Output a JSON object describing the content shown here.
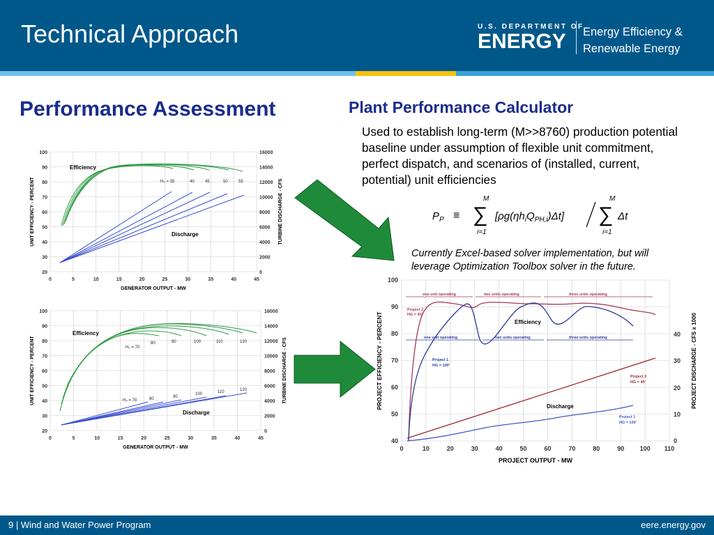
{
  "header": {
    "title": "Technical Approach",
    "doe_small": "U.S. DEPARTMENT OF",
    "doe_big": "ENERGY",
    "eere_line1": "Energy Efficiency &",
    "eere_line2": "Renewable Energy"
  },
  "left": {
    "heading": "Performance Assessment"
  },
  "right": {
    "heading": "Plant Performance Calculator",
    "description": "Used to establish long-term (M>>8760) production potential baseline under assumption of flexible unit commitment, perfect dispatch, and scenarios of (installed, current, potential) unit efficiencies",
    "note": "Currently Excel-based solver implementation, but will leverage Optimization Toolbox solver in the future."
  },
  "formula": {
    "lhs": "P",
    "lhs_sub": "P",
    "equiv": "≡",
    "upper_limit": "M",
    "lower_limit": "i=1",
    "numerator": "[ρg(ηh",
    "sub_i": "i",
    "q": "Q",
    "q_sub": "PH,i",
    "num_end": ")Δt]",
    "denominator": "Δt"
  },
  "chart1": {
    "y_label": "UNIT EFFICIENCY - PERCENT",
    "y2_label": "TURBINE DISCHARGE - CFS",
    "x_label": "GENERATOR OUTPUT - MW",
    "y_ticks": [
      "100",
      "90",
      "80",
      "70",
      "60",
      "50",
      "40",
      "30",
      "20"
    ],
    "y2_ticks": [
      "16000",
      "14000",
      "12000",
      "10000",
      "8000",
      "6000",
      "4000",
      "2000",
      "0"
    ],
    "x_ticks": [
      "0",
      "5",
      "10",
      "15",
      "20",
      "25",
      "30",
      "35",
      "40",
      "45"
    ],
    "efficiency_label": "Efficiency",
    "discharge_label": "Discharge",
    "head_labels": [
      "H₀ = 35",
      "40",
      "45",
      "50",
      "55"
    ]
  },
  "chart2": {
    "y_label": "UNIT EFFICIENCY - PERCENT",
    "y2_label": "TURBINE DISCHARGE - CFS",
    "x_label": "GENERATOR OUTPUT - MW",
    "y_ticks": [
      "100",
      "90",
      "80",
      "70",
      "60",
      "50",
      "40",
      "30",
      "20"
    ],
    "y2_ticks": [
      "16000",
      "14000",
      "12000",
      "10000",
      "8000",
      "6000",
      "4000",
      "2000",
      "0"
    ],
    "x_ticks": [
      "0",
      "5",
      "10",
      "15",
      "20",
      "25",
      "30",
      "35",
      "40",
      "45"
    ],
    "efficiency_label": "Efficiency",
    "discharge_label": "Discharge",
    "eff_head_labels": [
      "H₀ = 70",
      "80",
      "90",
      "100",
      "110",
      "120"
    ],
    "dis_head_labels": [
      "H₀ = 70",
      "80",
      "90",
      "100",
      "110",
      "120"
    ]
  },
  "chart3": {
    "y_label": "PROJECT EFFICIENCY - PERCENT",
    "y2_label": "PROJECT DISCHARGE - CFS x 1000",
    "x_label": "PROJECT OUTPUT - MW",
    "y_ticks": [
      "100",
      "90",
      "80",
      "70",
      "60",
      "50",
      "40"
    ],
    "y2_ticks": [
      "40",
      "30",
      "20",
      "10",
      "0"
    ],
    "x_ticks": [
      "0",
      "10",
      "20",
      "30",
      "40",
      "50",
      "60",
      "70",
      "80",
      "90",
      "100",
      "110"
    ],
    "p2_ops": [
      "one unit operating",
      "two units operating",
      "three units operating"
    ],
    "p1_ops": [
      "one unit operating",
      "two units operating",
      "three units operating"
    ],
    "efficiency_label": "Efficiency",
    "discharge_label": "Discharge",
    "p2_eff_label": [
      "Project 2",
      "HG = 45'"
    ],
    "p1_eff_label": [
      "Project 1",
      "HG = 100'"
    ],
    "p2_dis_label": [
      "Project 2",
      "HG = 45'"
    ],
    "p1_dis_label": [
      "Project 1",
      "HG = 100'"
    ]
  },
  "footer": {
    "left": "9 | Wind and Water Power Program",
    "right": "eere.energy.gov"
  },
  "colors": {
    "header_bg": "#00588a",
    "heading": "#1a2c8c",
    "arrow": "#1e8a3a",
    "stripe_light": "#7fc6e8",
    "stripe_yellow": "#f4c20d",
    "stripe_mid": "#3fa2d8"
  }
}
